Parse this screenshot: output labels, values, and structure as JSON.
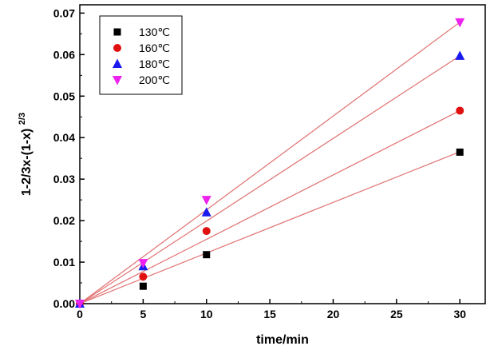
{
  "chart_data": {
    "type": "scatter",
    "xlabel": "time/min",
    "ylabel_main": "1-2/3x-(1-x)",
    "ylabel_sup": "2/3",
    "xlim": [
      0,
      32
    ],
    "ylim": [
      0,
      0.072
    ],
    "xticks": [
      0,
      5,
      10,
      15,
      20,
      25,
      30
    ],
    "yticks": [
      0.0,
      0.01,
      0.02,
      0.03,
      0.04,
      0.05,
      0.06,
      0.07
    ],
    "ytick_labels": [
      "0.00",
      "0.01",
      "0.02",
      "0.03",
      "0.04",
      "0.05",
      "0.06",
      "0.07"
    ],
    "grid": false,
    "legend_position": "top-left",
    "fit_line_color": "#e07070",
    "series": [
      {
        "name": "130℃",
        "marker": "square",
        "color": "#000000",
        "x": [
          0,
          5,
          10,
          30
        ],
        "y": [
          0.0,
          0.0042,
          0.0118,
          0.0365
        ],
        "fit": {
          "slope": 0.00122,
          "intercept": 0.0
        }
      },
      {
        "name": "160℃",
        "marker": "circle",
        "color": "#e01010",
        "x": [
          0,
          5,
          10,
          30
        ],
        "y": [
          0.0,
          0.0065,
          0.0175,
          0.0465
        ],
        "fit": {
          "slope": 0.00155,
          "intercept": 0.0
        }
      },
      {
        "name": "180℃",
        "marker": "triangle-up",
        "color": "#1a1aee",
        "x": [
          0,
          5,
          10,
          30
        ],
        "y": [
          0.0,
          0.009,
          0.022,
          0.0597
        ],
        "fit": {
          "slope": 0.00199,
          "intercept": 0.0
        }
      },
      {
        "name": "200℃",
        "marker": "triangle-down",
        "color": "#ee22ee",
        "x": [
          0,
          5,
          10,
          30
        ],
        "y": [
          0.0,
          0.0098,
          0.025,
          0.0678
        ],
        "fit": {
          "slope": 0.00226,
          "intercept": 0.0
        }
      }
    ]
  }
}
